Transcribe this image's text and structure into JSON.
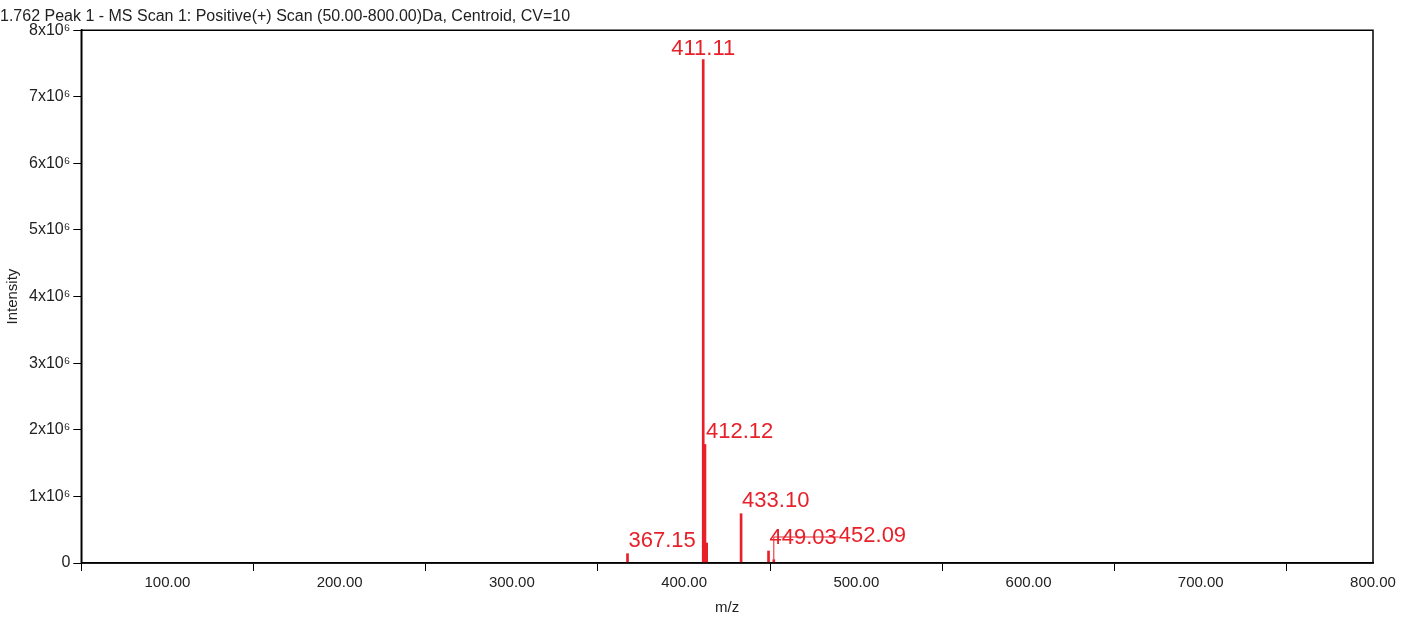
{
  "chart_data": {
    "type": "bar",
    "title": "1.762 Peak 1 - MS Scan 1: Positive(+) Scan (50.00-800.00)Da, Centroid, CV=10",
    "xlabel": "m/z",
    "ylabel": "Intensity",
    "x": [
      367.15,
      411.11,
      412.12,
      413.1,
      433.1,
      449.03,
      452.09
    ],
    "values": [
      140000,
      7560000,
      1780000,
      300000,
      740000,
      180000,
      50000
    ],
    "annotations": [
      {
        "text": "367.15",
        "x": 367.15,
        "y": 140000
      },
      {
        "text": "411.11",
        "x": 411.11,
        "y": 7560000
      },
      {
        "text": "412.12",
        "x": 412.12,
        "y": 1780000
      },
      {
        "text": "433.10",
        "x": 433.1,
        "y": 740000
      },
      {
        "text": "449.03",
        "x": 449.03,
        "y": 180000
      },
      {
        "text": "452.09",
        "x": 452.09,
        "y": 50000
      }
    ],
    "color": "#e8202a",
    "xlim": [
      50,
      800
    ],
    "xticks": [
      {
        "value": 100,
        "label": "100.00"
      },
      {
        "value": 200,
        "label": "200.00"
      },
      {
        "value": 300,
        "label": "300.00"
      },
      {
        "value": 400,
        "label": "400.00"
      },
      {
        "value": 500,
        "label": "500.00"
      },
      {
        "value": 600,
        "label": "600.00"
      },
      {
        "value": 700,
        "label": "700.00"
      },
      {
        "value": 800,
        "label": "800.00"
      }
    ],
    "ylim": [
      0,
      8000000
    ],
    "yticks": [
      0,
      {
        "value": 1000000,
        "label": "1x10⁶"
      },
      {
        "value": 2000000,
        "label": "2x10⁶"
      },
      {
        "value": 3000000,
        "label": "3x10⁶"
      },
      {
        "value": 4000000,
        "label": "4x10⁶"
      },
      {
        "value": 5000000,
        "label": "5x10⁶"
      },
      {
        "value": 6000000,
        "label": "6x10⁶"
      },
      {
        "value": 7000000,
        "label": "7x10⁶"
      },
      {
        "value": 8000000,
        "label": "8x10⁶"
      }
    ],
    "grid": false,
    "legend": false
  }
}
